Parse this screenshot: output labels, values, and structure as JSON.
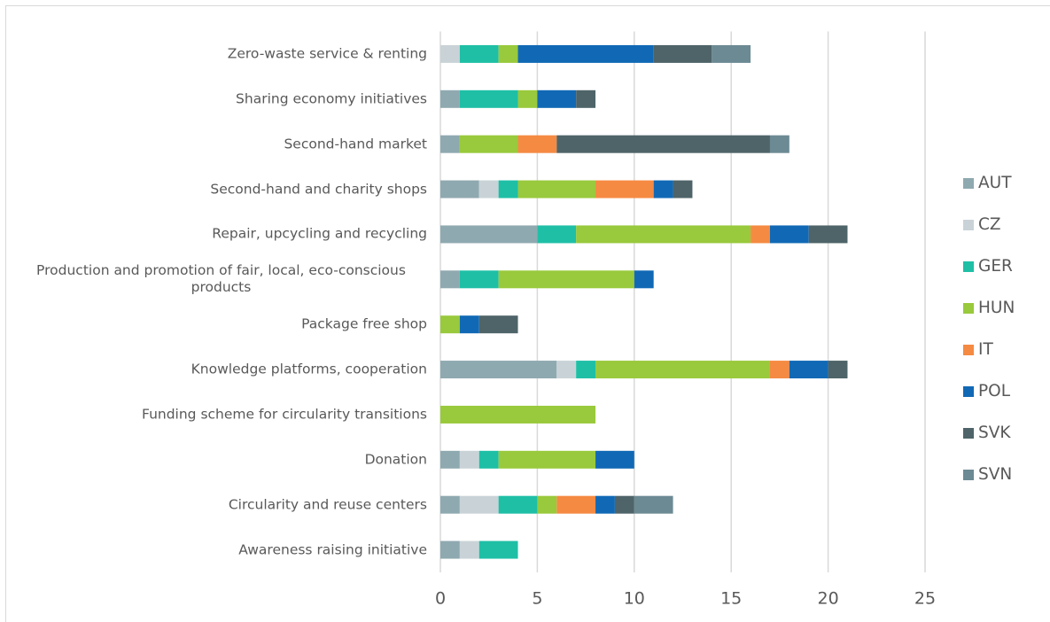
{
  "chart_data": {
    "type": "stacked_barh",
    "categories": [
      "Zero-waste service & renting",
      "Sharing economy initiatives",
      "Second-hand market",
      "Second-hand and charity shops",
      "Repair, upcycling and recycling",
      "Production and promotion of fair, local, eco-conscious products",
      "Package free shop",
      "Knowledge platforms, cooperation",
      "Funding scheme for circularity transitions",
      "Donation",
      "Circularity and reuse centers",
      "Awareness raising initiative"
    ],
    "series": [
      {
        "name": "AUT",
        "color": "#8fa9b0",
        "values": [
          0,
          1,
          1,
          2,
          5,
          1,
          0,
          6,
          0,
          1,
          1,
          1
        ]
      },
      {
        "name": "CZ",
        "color": "#c9d3d7",
        "values": [
          1,
          0,
          0,
          1,
          0,
          0,
          0,
          1,
          0,
          1,
          2,
          1
        ]
      },
      {
        "name": "GER",
        "color": "#1fbfa6",
        "values": [
          2,
          3,
          0,
          1,
          2,
          2,
          0,
          1,
          0,
          1,
          2,
          2
        ]
      },
      {
        "name": "HUN",
        "color": "#99c93c",
        "values": [
          1,
          1,
          3,
          4,
          9,
          7,
          1,
          9,
          8,
          5,
          1,
          0
        ]
      },
      {
        "name": "IT",
        "color": "#f58a42",
        "values": [
          0,
          0,
          2,
          3,
          1,
          0,
          0,
          1,
          0,
          0,
          2,
          0
        ]
      },
      {
        "name": "POL",
        "color": "#1169b5",
        "values": [
          7,
          2,
          0,
          1,
          2,
          1,
          1,
          2,
          0,
          2,
          1,
          0
        ]
      },
      {
        "name": "SVK",
        "color": "#4e6468",
        "values": [
          3,
          1,
          11,
          1,
          2,
          0,
          2,
          1,
          0,
          0,
          1,
          0
        ]
      },
      {
        "name": "SVN",
        "color": "#6c8a93",
        "values": [
          2,
          0,
          1,
          0,
          0,
          0,
          0,
          0,
          0,
          0,
          2,
          0
        ]
      }
    ],
    "xlim": [
      0,
      25
    ],
    "xticks": [
      0,
      5,
      10,
      15,
      20,
      25
    ],
    "grid": true,
    "legend": "right"
  }
}
